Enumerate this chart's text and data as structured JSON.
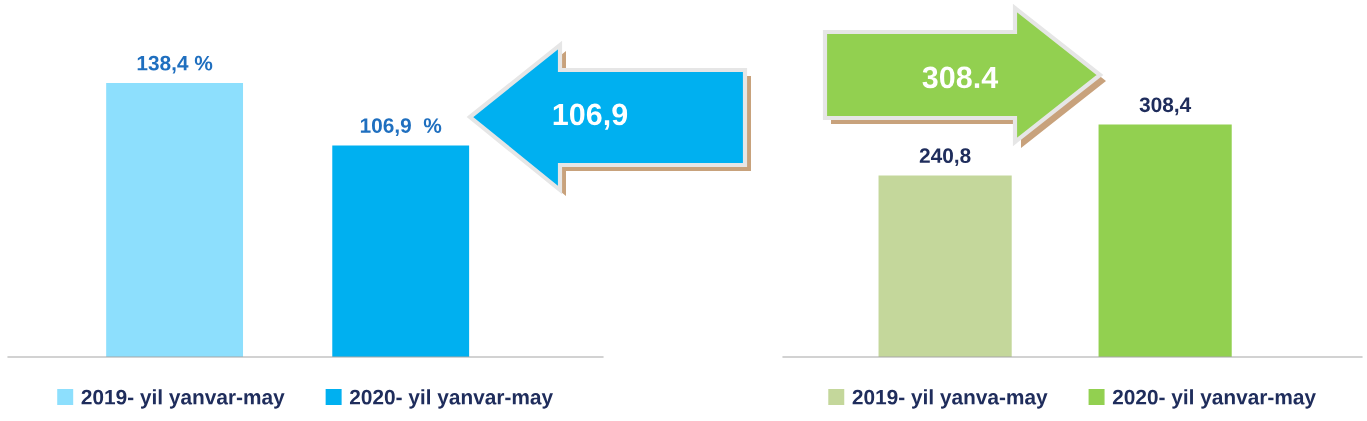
{
  "chart_data": [
    {
      "type": "bar",
      "categories": [
        null
      ],
      "tick_labels": false,
      "legend": "bottom",
      "grid": false,
      "series": [
        {
          "name": "2019- yil yanvar-may",
          "color": "#8ddffd",
          "values": [
            138.4
          ],
          "value_labels": [
            "138,4 %"
          ]
        },
        {
          "name": "2020- yil yanvar-may",
          "color": "#00b0f0",
          "values": [
            106.9
          ],
          "value_labels": [
            "106,9  %"
          ]
        }
      ],
      "annotations": [
        "106,9"
      ]
    },
    {
      "type": "bar",
      "categories": [
        null
      ],
      "tick_labels": false,
      "legend": "bottom",
      "grid": false,
      "series": [
        {
          "name": "2019- yil yanva-may",
          "color": "#c4d79b",
          "values": [
            240.8
          ],
          "value_labels": [
            "240,8"
          ]
        },
        {
          "name": "2020- yil yanvar-may",
          "color": "#92d050",
          "values": [
            308.4
          ],
          "value_labels": [
            "308,4"
          ]
        }
      ],
      "annotations": [
        "308.4"
      ]
    }
  ]
}
